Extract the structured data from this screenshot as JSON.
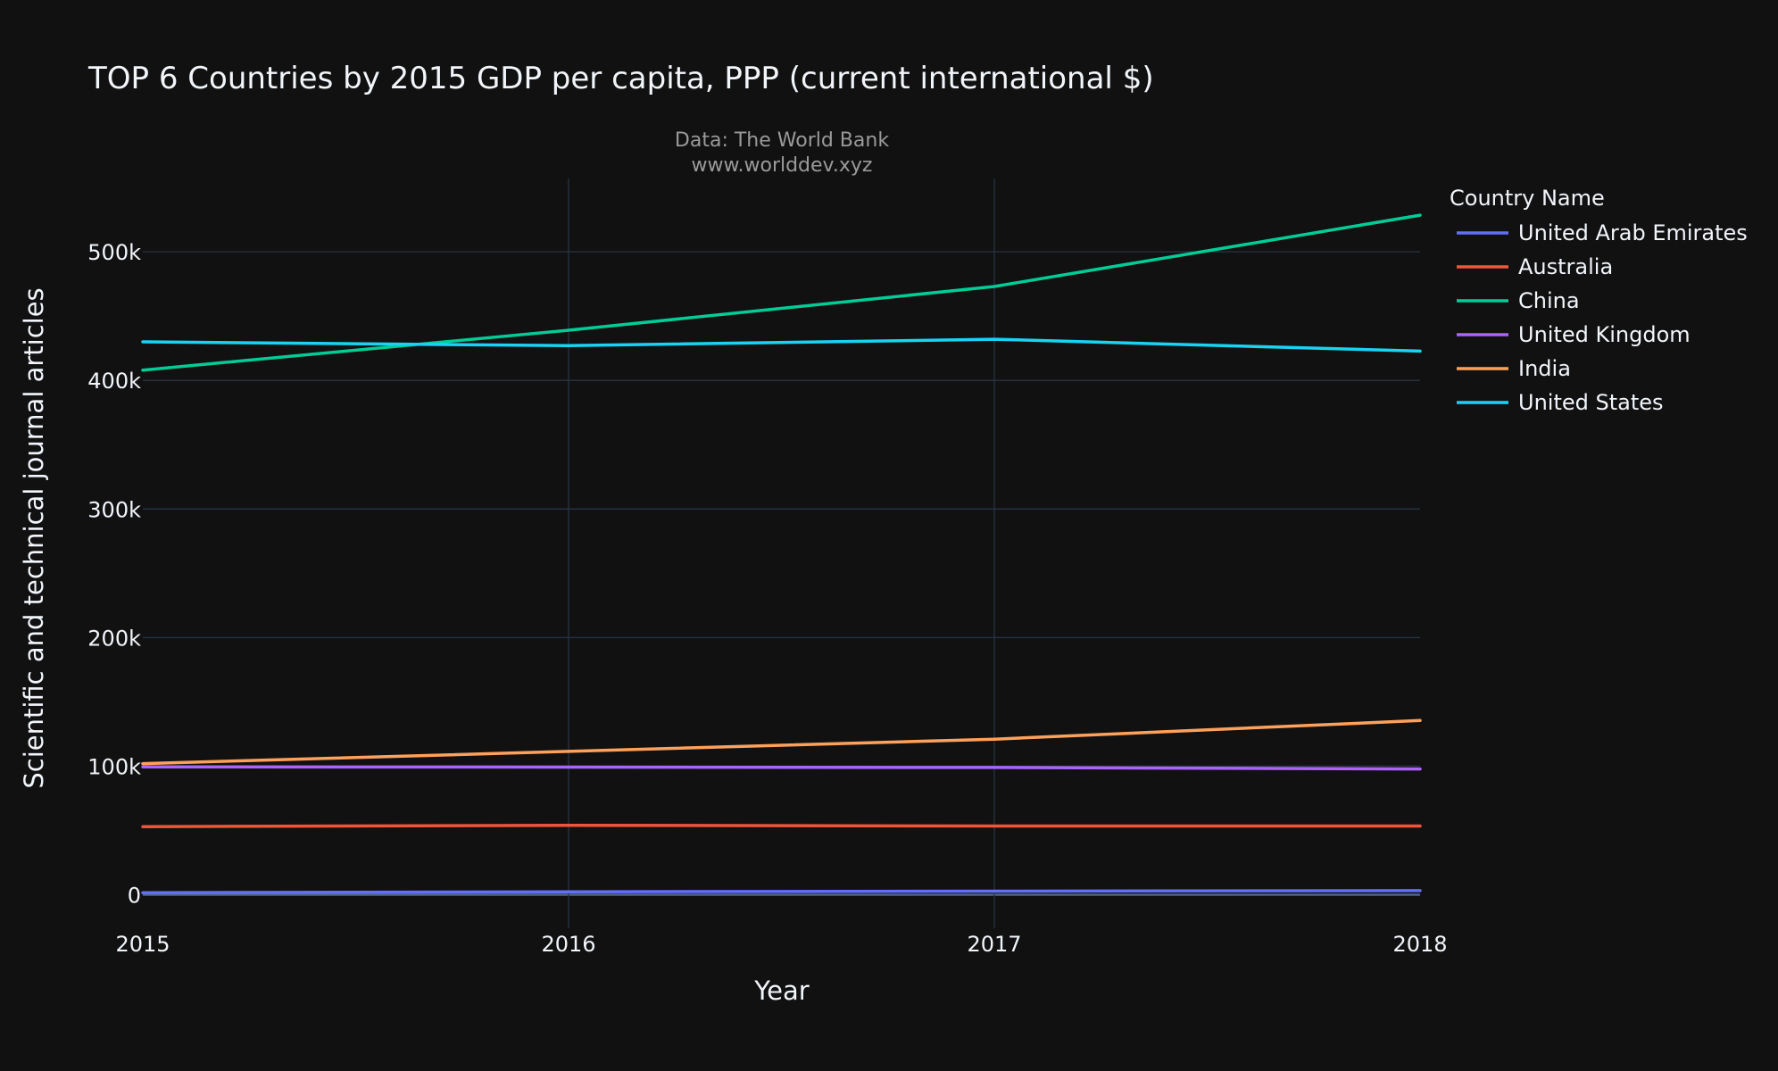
{
  "chart_data": {
    "type": "line",
    "title": "TOP 6 Countries by 2015 GDP per capita, PPP (current international $)",
    "annotation": {
      "line1": "Data: The World Bank",
      "line2": "www.worlddev.xyz"
    },
    "xlabel": "Year",
    "ylabel": "Scientific and technical journal articles",
    "x": [
      2015,
      2016,
      2017,
      2018
    ],
    "xlim": [
      2015,
      2018
    ],
    "ylim": [
      -26000,
      557000
    ],
    "x_ticks": [
      {
        "value": 2015,
        "label": "2015"
      },
      {
        "value": 2016,
        "label": "2016"
      },
      {
        "value": 2017,
        "label": "2017"
      },
      {
        "value": 2018,
        "label": "2018"
      }
    ],
    "y_ticks": [
      {
        "value": 0,
        "label": "0"
      },
      {
        "value": 100000,
        "label": "100k"
      },
      {
        "value": 200000,
        "label": "200k"
      },
      {
        "value": 300000,
        "label": "300k"
      },
      {
        "value": 400000,
        "label": "400k"
      },
      {
        "value": 500000,
        "label": "500k"
      }
    ],
    "grid": true,
    "legend": {
      "title": "Country Name",
      "placement": "right"
    },
    "series": [
      {
        "name": "United Arab Emirates",
        "color": "#636efa",
        "values": [
          1600,
          2300,
          2800,
          3200
        ]
      },
      {
        "name": "Australia",
        "color": "#ef553b",
        "values": [
          53000,
          54000,
          53500,
          53500
        ]
      },
      {
        "name": "China",
        "color": "#00cc96",
        "values": [
          408000,
          439000,
          473000,
          528500
        ]
      },
      {
        "name": "United Kingdom",
        "color": "#ab63fa",
        "values": [
          99500,
          99300,
          99000,
          97800
        ]
      },
      {
        "name": "India",
        "color": "#ffa15a",
        "values": [
          102000,
          111500,
          121000,
          135500
        ]
      },
      {
        "name": "United States",
        "color": "#19d3f3",
        "values": [
          430000,
          427000,
          432000,
          422800
        ]
      }
    ]
  }
}
